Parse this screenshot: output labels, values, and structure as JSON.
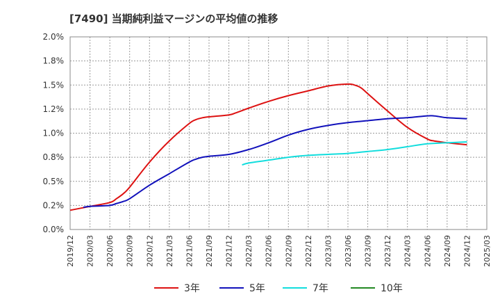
{
  "chart_data": {
    "type": "line",
    "title": "[7490]  当期純利益マージンの平均値の推移",
    "ylim": [
      0,
      2.0
    ],
    "yticks": [
      0,
      0.25,
      0.5,
      0.75,
      1.0,
      1.25,
      1.5,
      1.75,
      2.0
    ],
    "ytick_labels": [
      "0.0%",
      "0.2%",
      "0.5%",
      "0.8%",
      "1.0%",
      "1.2%",
      "1.5%",
      "1.8%",
      "2.0%"
    ],
    "xticks": [
      "2019/12",
      "2020/03",
      "2020/06",
      "2020/09",
      "2020/12",
      "2021/03",
      "2021/06",
      "2021/09",
      "2021/12",
      "2022/03",
      "2022/06",
      "2022/09",
      "2022/12",
      "2023/03",
      "2023/06",
      "2023/09",
      "2023/12",
      "2024/03",
      "2024/06",
      "2024/09",
      "2024/12",
      "2025/03"
    ],
    "grid": true,
    "legend_position": "bottom",
    "series": [
      {
        "name": "3年",
        "color": "#dd1111",
        "x": [
          "2019/12",
          "2020/03",
          "2020/06",
          "2020/07",
          "2020/08",
          "2020/09",
          "2020/12",
          "2021/03",
          "2021/06",
          "2021/07",
          "2021/08",
          "2021/09",
          "2021/12",
          "2022/01",
          "2022/03",
          "2022/06",
          "2022/09",
          "2022/12",
          "2023/03",
          "2023/06",
          "2023/07",
          "2023/08",
          "2023/09",
          "2023/12",
          "2024/03",
          "2024/06",
          "2024/07",
          "2024/08",
          "2024/09",
          "2024/12"
        ],
        "values": [
          0.2,
          0.24,
          0.28,
          0.32,
          0.37,
          0.44,
          0.7,
          0.92,
          1.1,
          1.14,
          1.16,
          1.17,
          1.19,
          1.21,
          1.26,
          1.33,
          1.39,
          1.44,
          1.49,
          1.51,
          1.5,
          1.47,
          1.41,
          1.23,
          1.06,
          0.94,
          0.92,
          0.91,
          0.9,
          0.88
        ]
      },
      {
        "name": "5年",
        "color": "#1111bb",
        "x": [
          "2020/02",
          "2020/03",
          "2020/06",
          "2020/07",
          "2020/08",
          "2020/09",
          "2020/12",
          "2021/03",
          "2021/06",
          "2021/07",
          "2021/08",
          "2021/09",
          "2021/12",
          "2022/03",
          "2022/06",
          "2022/09",
          "2022/12",
          "2023/03",
          "2023/06",
          "2023/09",
          "2023/12",
          "2024/03",
          "2024/06",
          "2024/07",
          "2024/08",
          "2024/09",
          "2024/12"
        ],
        "values": [
          0.23,
          0.24,
          0.25,
          0.27,
          0.29,
          0.32,
          0.46,
          0.58,
          0.7,
          0.73,
          0.75,
          0.76,
          0.78,
          0.83,
          0.9,
          0.98,
          1.04,
          1.08,
          1.11,
          1.13,
          1.15,
          1.16,
          1.18,
          1.18,
          1.17,
          1.16,
          1.15
        ]
      },
      {
        "name": "7年",
        "color": "#11dddd",
        "x": [
          "2022/02",
          "2022/03",
          "2022/06",
          "2022/09",
          "2022/12",
          "2023/03",
          "2023/06",
          "2023/09",
          "2023/12",
          "2024/03",
          "2024/06",
          "2024/09",
          "2024/12"
        ],
        "values": [
          0.67,
          0.69,
          0.72,
          0.75,
          0.77,
          0.78,
          0.79,
          0.81,
          0.83,
          0.86,
          0.89,
          0.9,
          0.91
        ]
      },
      {
        "name": "10年",
        "color": "#228822",
        "x": [],
        "values": []
      }
    ]
  }
}
